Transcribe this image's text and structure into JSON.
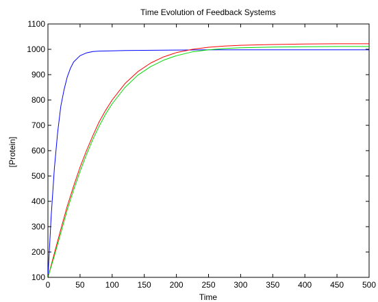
{
  "chart_data": {
    "type": "line",
    "title": "Time Evolution of Feedback Systems",
    "xlabel": "Time",
    "ylabel": "[Protein]",
    "xlim": [
      0,
      500
    ],
    "ylim": [
      100,
      1100
    ],
    "xticks": [
      0,
      50,
      100,
      150,
      200,
      250,
      300,
      350,
      400,
      450,
      500
    ],
    "yticks": [
      100,
      200,
      300,
      400,
      500,
      600,
      700,
      800,
      900,
      1000,
      1100
    ],
    "grid": false,
    "legend": "none",
    "series": [
      {
        "color": "#0000ff",
        "x": [
          0,
          5,
          10,
          15,
          20,
          25,
          30,
          35,
          40,
          50,
          60,
          70,
          80,
          100,
          120,
          150,
          200,
          250,
          300,
          400,
          500
        ],
        "y": [
          100,
          340,
          530,
          670,
          775,
          840,
          890,
          925,
          950,
          975,
          986,
          991,
          993,
          994,
          995,
          996,
          997,
          998,
          998,
          998,
          998
        ]
      },
      {
        "color": "#ff0000",
        "x": [
          0,
          10,
          20,
          30,
          40,
          50,
          60,
          70,
          80,
          90,
          100,
          120,
          140,
          160,
          180,
          200,
          225,
          250,
          275,
          300,
          350,
          400,
          450,
          500
        ],
        "y": [
          100,
          195,
          290,
          380,
          460,
          535,
          600,
          660,
          715,
          760,
          800,
          865,
          912,
          946,
          970,
          987,
          1000,
          1008,
          1013,
          1016,
          1019,
          1021,
          1022,
          1022
        ]
      },
      {
        "color": "#00dd00",
        "x": [
          0,
          10,
          20,
          30,
          40,
          50,
          60,
          70,
          80,
          90,
          100,
          120,
          140,
          160,
          180,
          200,
          225,
          250,
          275,
          300,
          350,
          400,
          450,
          500
        ],
        "y": [
          100,
          185,
          275,
          365,
          445,
          518,
          585,
          645,
          698,
          745,
          785,
          850,
          898,
          932,
          957,
          975,
          990,
          998,
          1003,
          1006,
          1009,
          1010,
          1011,
          1011
        ]
      }
    ]
  }
}
